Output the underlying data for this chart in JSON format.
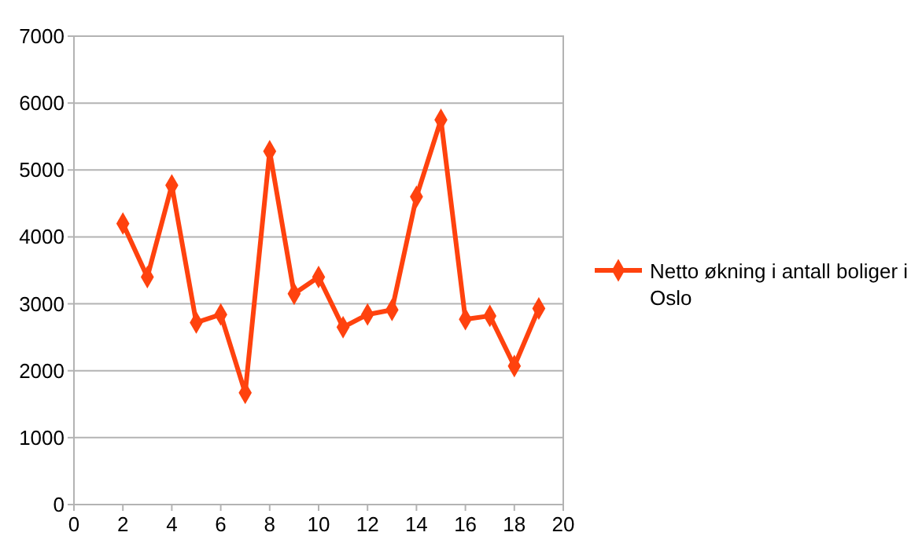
{
  "chart_data": {
    "type": "line",
    "x": [
      2,
      3,
      4,
      5,
      6,
      7,
      8,
      9,
      10,
      11,
      12,
      13,
      14,
      15,
      16,
      17,
      18,
      19
    ],
    "series": [
      {
        "name": "Netto økning i antall boliger i Oslo",
        "color": "#ff420e",
        "values": [
          4200,
          3400,
          4770,
          2720,
          2840,
          1670,
          5280,
          3150,
          3400,
          2650,
          2840,
          2910,
          4600,
          5750,
          2770,
          2820,
          2070,
          2930
        ]
      }
    ],
    "xlim": [
      0,
      20
    ],
    "xticks": [
      0,
      2,
      4,
      6,
      8,
      10,
      12,
      14,
      16,
      18,
      20
    ],
    "ylim": [
      0,
      7000
    ],
    "yticks": [
      0,
      1000,
      2000,
      3000,
      4000,
      5000,
      6000,
      7000
    ],
    "grid": "y",
    "legend": "right",
    "marker": "diamond",
    "line_style": "solid"
  }
}
